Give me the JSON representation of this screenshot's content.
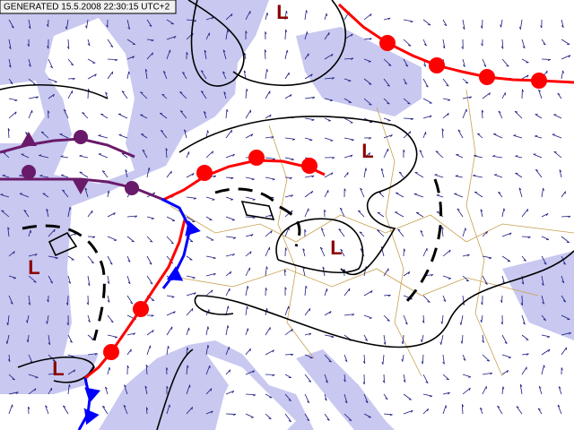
{
  "header": {
    "timestamp": "GENERATED 15.5.2008 22:30:15 UTC+2"
  },
  "lows": [
    "L",
    "L",
    "L",
    "L",
    "L"
  ]
}
